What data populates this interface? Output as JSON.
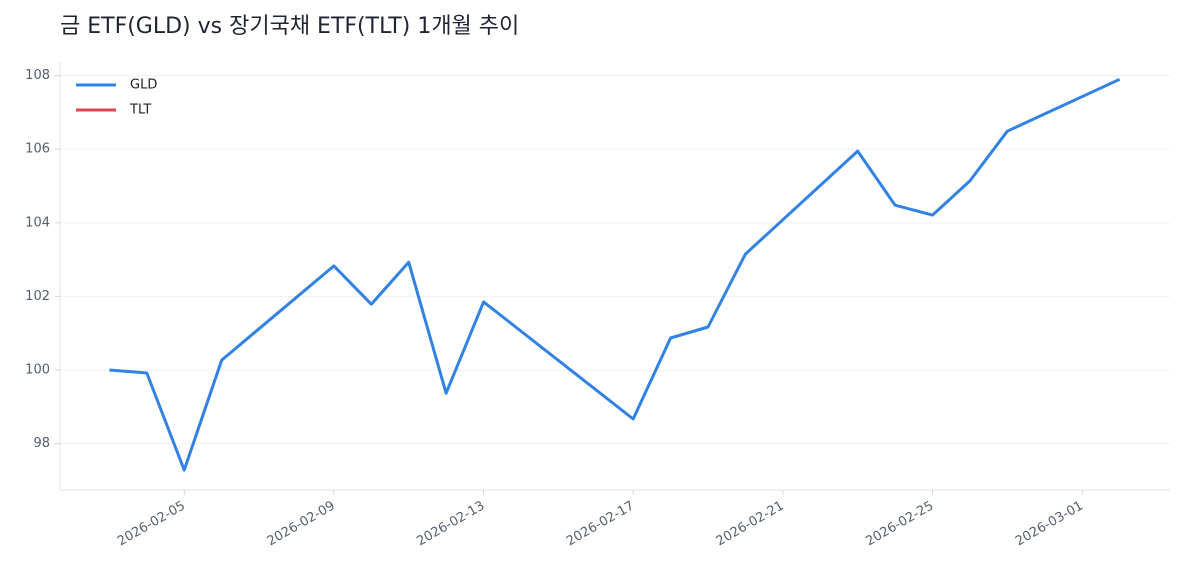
{
  "chart_data": {
    "type": "line",
    "title": "금 ETF(GLD) vs 장기국채 ETF(TLT) 1개월 추이",
    "x": [
      "2026-02-03",
      "2026-02-04",
      "2026-02-05",
      "2026-02-06",
      "2026-02-09",
      "2026-02-10",
      "2026-02-11",
      "2026-02-12",
      "2026-02-13",
      "2026-02-17",
      "2026-02-18",
      "2026-02-19",
      "2026-02-20",
      "2026-02-23",
      "2026-02-24",
      "2026-02-25",
      "2026-02-26",
      "2026-02-27",
      "2026-03-02"
    ],
    "series": [
      {
        "name": "GLD",
        "color": "#3282e6",
        "values": [
          100.0,
          99.92,
          97.28,
          100.27,
          102.83,
          101.79,
          102.93,
          99.37,
          101.85,
          98.67,
          100.87,
          101.17,
          103.15,
          105.95,
          104.48,
          104.21,
          105.14,
          106.49,
          107.9
        ]
      },
      {
        "name": "TLT",
        "color": "#e0454f",
        "values": [
          null,
          null,
          null,
          null,
          null,
          null,
          null,
          null,
          null,
          null,
          null,
          null,
          null,
          null,
          null,
          null,
          null,
          null,
          null
        ]
      }
    ],
    "xlim": [
      "2026-02-02",
      "2026-03-03"
    ],
    "xticks": [
      "2026-02-05",
      "2026-02-09",
      "2026-02-13",
      "2026-02-17",
      "2026-02-21",
      "2026-02-25",
      "2026-03-01"
    ],
    "ylim": [
      96.74,
      108.37
    ],
    "yticks": [
      98,
      100,
      102,
      104,
      106,
      108
    ],
    "grid": true,
    "legend": "upper-left"
  }
}
